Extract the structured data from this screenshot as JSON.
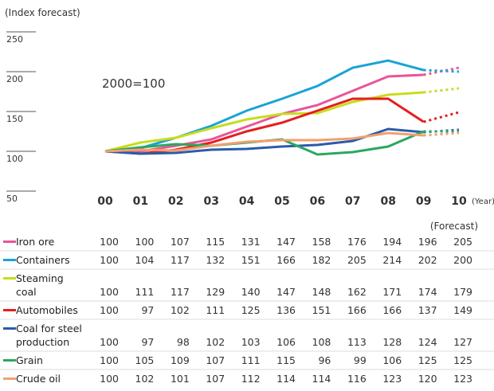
{
  "chart_data": {
    "type": "line",
    "y_axis_label": "(Index forecast)",
    "annotation": "2000=100",
    "x_axis_label": "(Year)",
    "forecast_label": "(Forecast)",
    "forecast_from": "09",
    "categories": [
      "00",
      "01",
      "02",
      "03",
      "04",
      "05",
      "06",
      "07",
      "08",
      "09",
      "10"
    ],
    "ylim": [
      50,
      250
    ],
    "yticks": [
      50,
      100,
      150,
      200,
      250
    ],
    "series": [
      {
        "name": "Iron ore",
        "color": "#e8559a",
        "values": [
          100,
          100,
          107,
          115,
          131,
          147,
          158,
          176,
          194,
          196,
          205
        ]
      },
      {
        "name": "Containers",
        "color": "#1aa3d6",
        "values": [
          100,
          104,
          117,
          132,
          151,
          166,
          182,
          205,
          214,
          202,
          200
        ]
      },
      {
        "name": "Steaming coal",
        "color": "#c8dc1e",
        "values": [
          100,
          111,
          117,
          129,
          140,
          147,
          148,
          162,
          171,
          174,
          179
        ]
      },
      {
        "name": "Automobiles",
        "color": "#e61e1e",
        "values": [
          100,
          97,
          102,
          111,
          125,
          136,
          151,
          166,
          166,
          137,
          149
        ]
      },
      {
        "name": "Coal for steel production",
        "color": "#2a5caa",
        "values": [
          100,
          97,
          98,
          102,
          103,
          106,
          108,
          113,
          128,
          124,
          127
        ]
      },
      {
        "name": "Grain",
        "color": "#2aa860",
        "values": [
          100,
          105,
          109,
          107,
          111,
          115,
          96,
          99,
          106,
          125,
          125
        ]
      },
      {
        "name": "Crude oil",
        "color": "#f0a070",
        "values": [
          100,
          102,
          101,
          107,
          112,
          114,
          114,
          116,
          123,
          120,
          123
        ]
      }
    ]
  }
}
